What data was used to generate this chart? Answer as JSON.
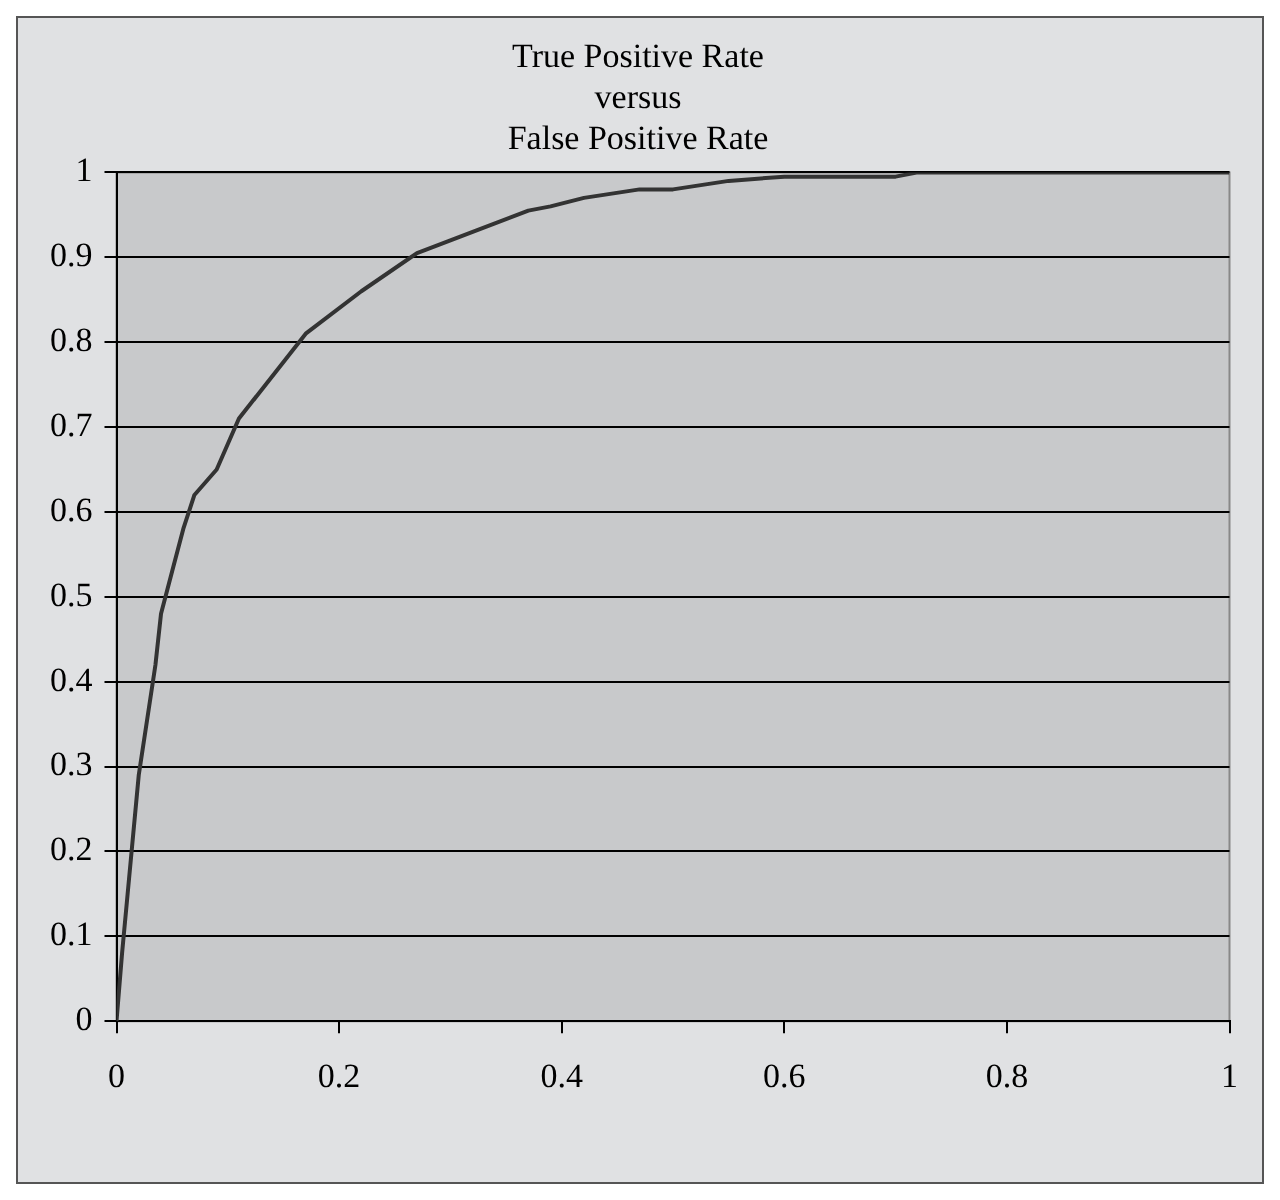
{
  "chart_data": {
    "type": "line",
    "title": "True Positive Rate\nversus\nFalse Positive Rate",
    "x": [
      0,
      0.005,
      0.01,
      0.02,
      0.035,
      0.04,
      0.05,
      0.06,
      0.07,
      0.09,
      0.11,
      0.17,
      0.22,
      0.27,
      0.32,
      0.37,
      0.39,
      0.42,
      0.47,
      0.5,
      0.55,
      0.6,
      0.7,
      0.72,
      1
    ],
    "series": [
      {
        "color": "#333333",
        "values": [
          0,
          0.08,
          0.15,
          0.29,
          0.42,
          0.48,
          0.53,
          0.58,
          0.62,
          0.65,
          0.71,
          0.81,
          0.86,
          0.905,
          0.93,
          0.955,
          0.96,
          0.97,
          0.98,
          0.98,
          0.99,
          0.995,
          0.995,
          1,
          1
        ]
      }
    ],
    "xlim": [
      0,
      1
    ],
    "xticks": [
      0,
      0.2,
      0.4,
      0.6,
      0.8,
      1
    ],
    "ylim": [
      0,
      1
    ],
    "yticks": [
      0,
      0.1,
      0.2,
      0.3,
      0.4,
      0.5,
      0.6,
      0.7,
      0.8,
      0.9,
      1
    ],
    "grid": "y",
    "legend": false,
    "marker": "none",
    "line_style": "solid"
  }
}
